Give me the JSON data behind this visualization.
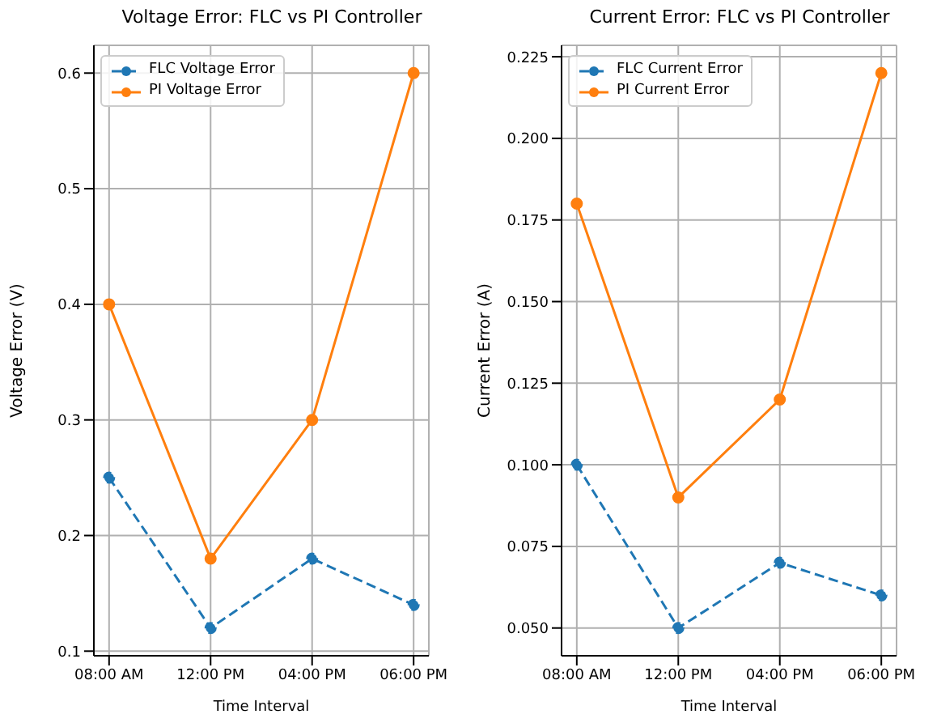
{
  "chart_data": [
    {
      "type": "line",
      "title": "Voltage Error: FLC vs PI Controller",
      "xlabel": "Time Interval",
      "ylabel": "Voltage Error (V)",
      "categories": [
        "08:00 AM",
        "12:00 PM",
        "04:00 PM",
        "06:00 PM"
      ],
      "series": [
        {
          "name": "FLC Voltage Error",
          "color": "#1f77b4",
          "values": [
            0.25,
            0.12,
            0.18,
            0.14
          ],
          "line_style": "dashed"
        },
        {
          "name": "PI Voltage Error",
          "color": "#ff7f0e",
          "values": [
            0.4,
            0.18,
            0.3,
            0.6
          ],
          "line_style": "solid"
        }
      ],
      "ylim": [
        0.096,
        0.624
      ],
      "yticks": [
        0.1,
        0.2,
        0.3,
        0.4,
        0.5,
        0.6
      ],
      "grid": true,
      "legend": "top left",
      "marker": "circle"
    },
    {
      "type": "line",
      "title": "Current Error: FLC vs PI Controller",
      "xlabel": "Time Interval",
      "ylabel": "Current Error (A)",
      "categories": [
        "08:00 AM",
        "12:00 PM",
        "04:00 PM",
        "06:00 PM"
      ],
      "series": [
        {
          "name": "FLC Current Error",
          "color": "#1f77b4",
          "values": [
            0.1,
            0.05,
            0.07,
            0.06
          ],
          "line_style": "dashed"
        },
        {
          "name": "PI Current Error",
          "color": "#ff7f0e",
          "values": [
            0.18,
            0.09,
            0.12,
            0.22
          ],
          "line_style": "solid"
        }
      ],
      "ylim": [
        0.0415,
        0.2285
      ],
      "yticks": [
        {
          "value": 0.05,
          "label": "0.050"
        },
        {
          "value": 0.075,
          "label": "0.075"
        },
        {
          "value": 0.1,
          "label": "0.100"
        },
        {
          "value": 0.125,
          "label": "0.125"
        },
        {
          "value": 0.15,
          "label": "0.150"
        },
        {
          "value": 0.175,
          "label": "0.175"
        },
        {
          "value": 0.2,
          "label": "0.200"
        },
        {
          "value": 0.225,
          "label": "0.225"
        }
      ],
      "grid": true,
      "legend": "top left",
      "marker": "circle"
    }
  ]
}
